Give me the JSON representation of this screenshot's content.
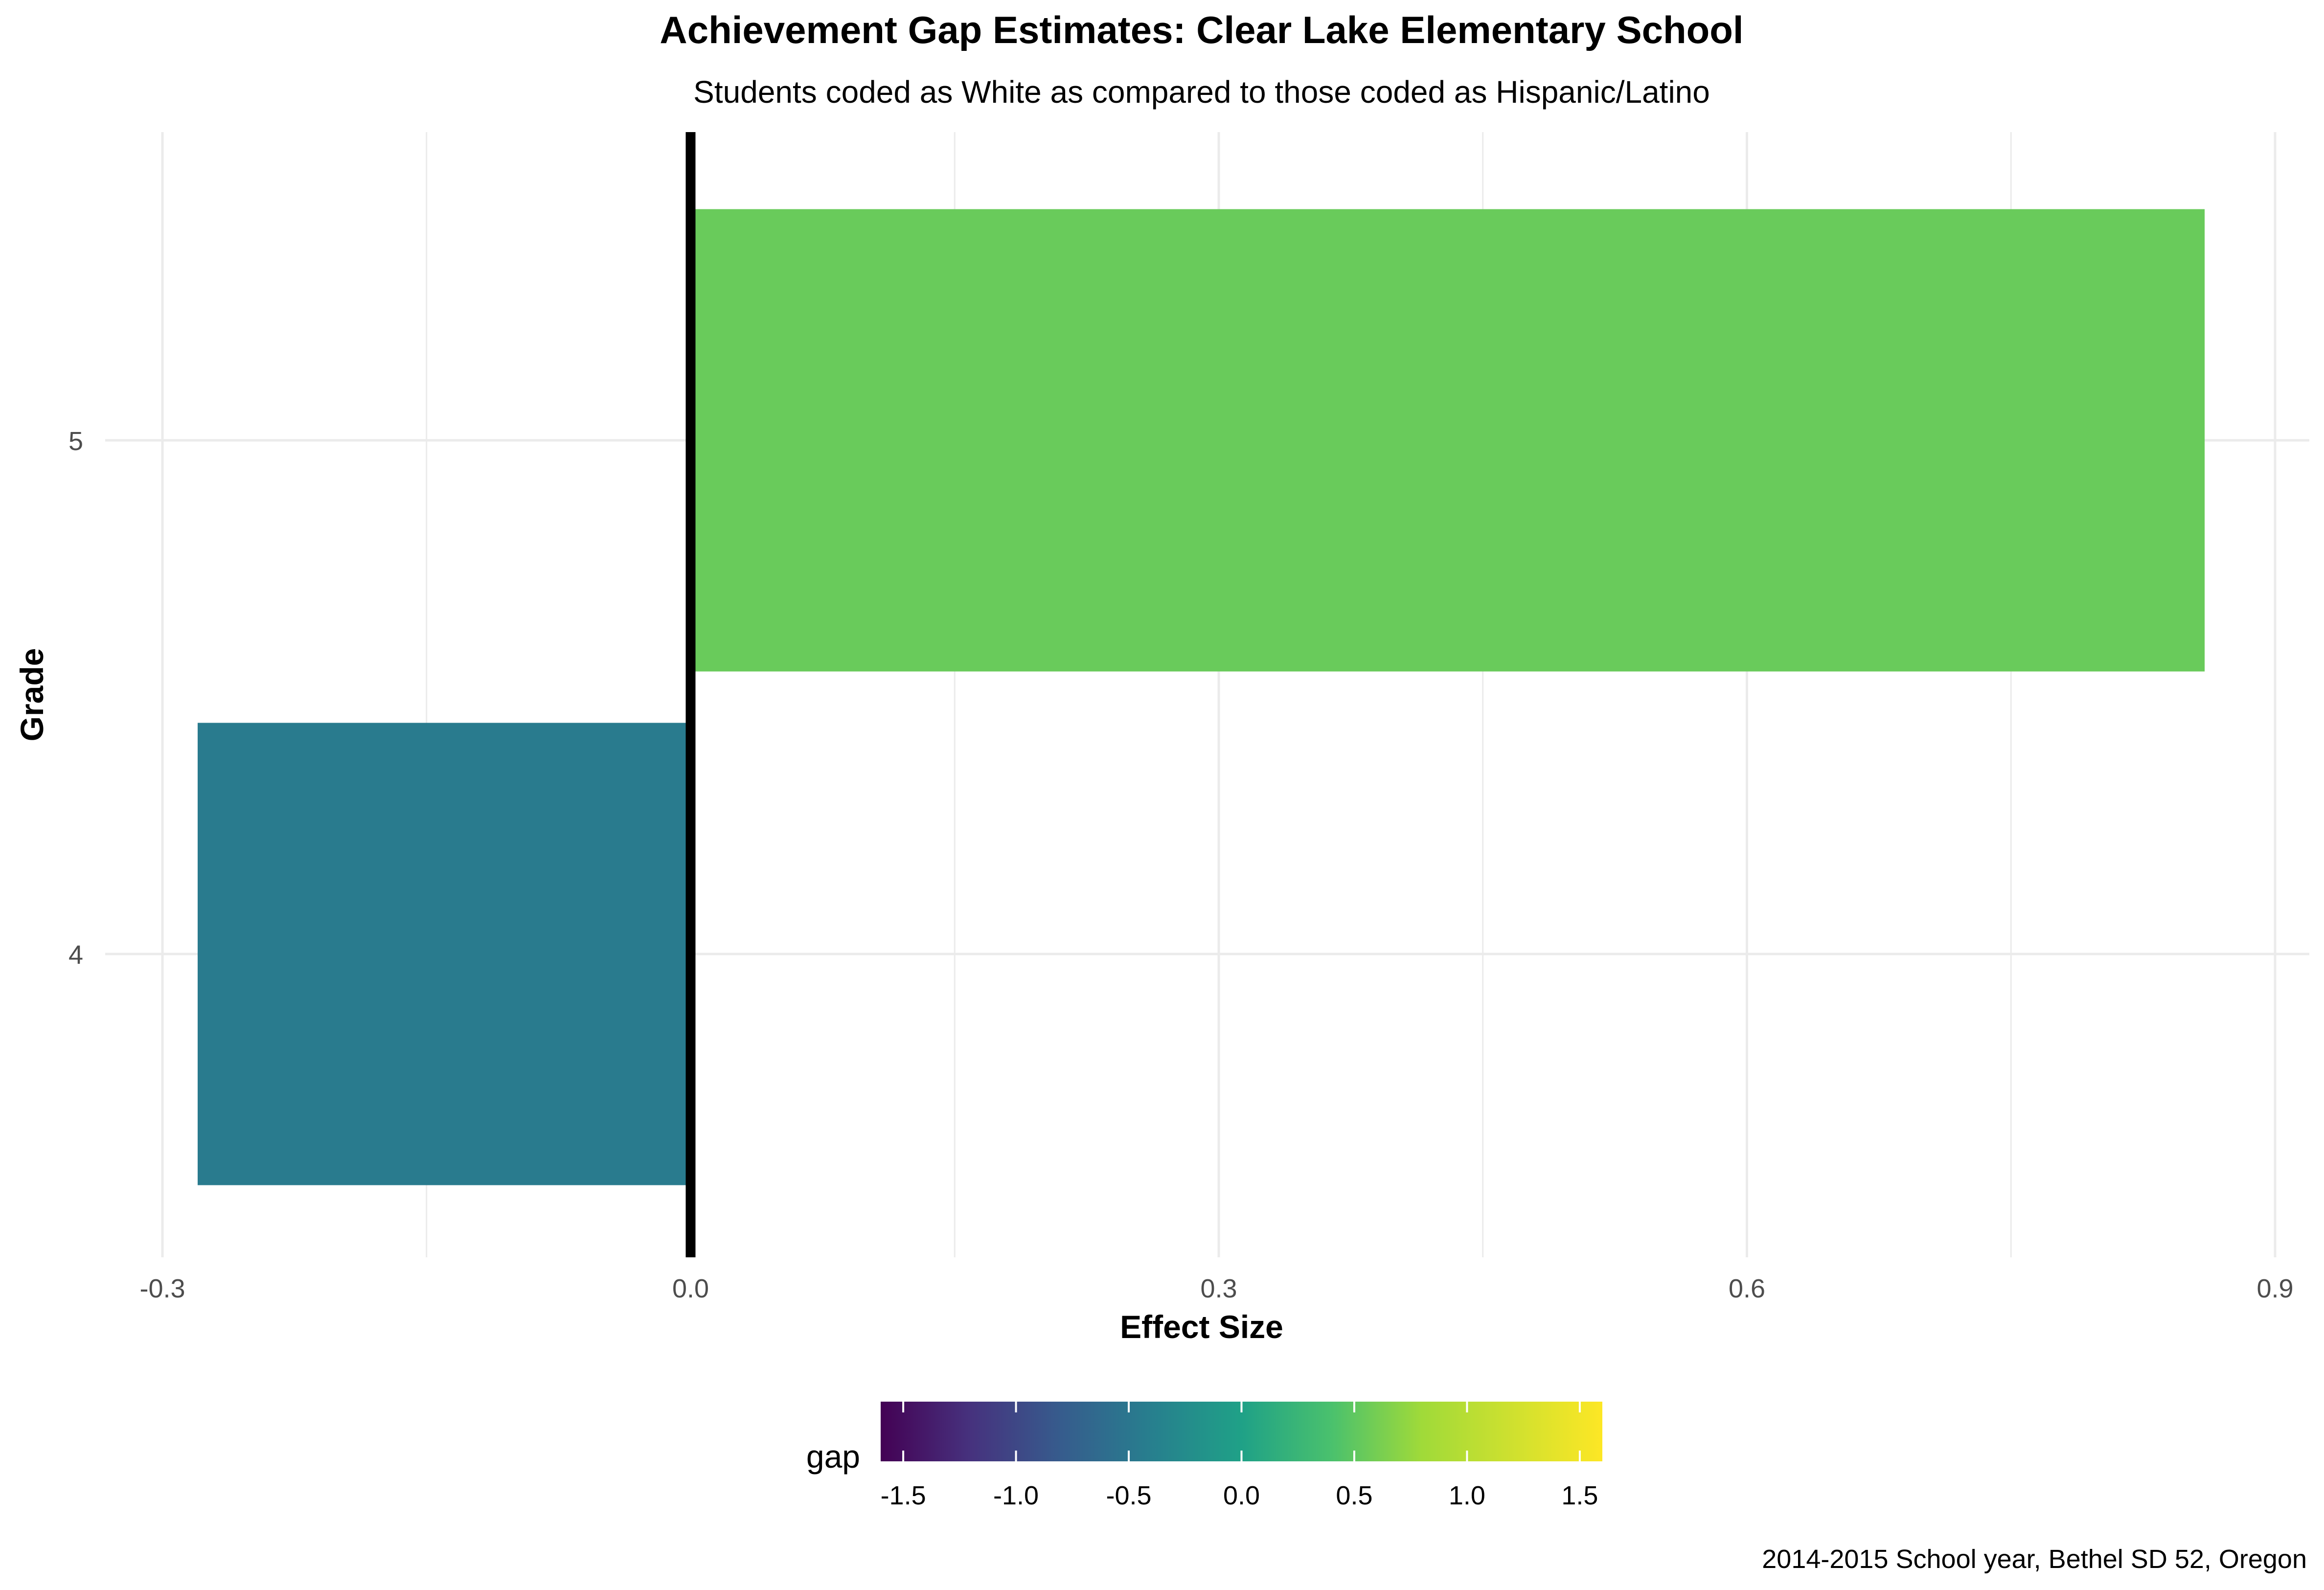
{
  "chart_data": {
    "type": "bar",
    "orientation": "horizontal",
    "title": "Achievement Gap Estimates: Clear Lake Elementary School",
    "subtitle": "Students coded as White as compared to those coded as Hispanic/Latino",
    "xlabel": "Effect Size",
    "ylabel": "Grade",
    "caption": "2014-2015 School year, Bethel SD 52, Oregon",
    "categories": [
      "4",
      "5"
    ],
    "values": [
      -0.28,
      0.86
    ],
    "xlim": [
      -0.3,
      0.9
    ],
    "xticks": [
      -0.3,
      0.0,
      0.3,
      0.6,
      0.9
    ],
    "xtick_labels": [
      "-0.3",
      "0.0",
      "0.3",
      "0.6",
      "0.9"
    ],
    "reference_line": 0,
    "grid": true,
    "legend": {
      "title": "gap",
      "position": "bottom",
      "type": "colorbar",
      "palette": "viridis",
      "limits": [
        -1.6,
        1.6
      ],
      "ticks": [
        -1.5,
        -1.0,
        -0.5,
        0.0,
        0.5,
        1.0,
        1.5
      ],
      "tick_labels": [
        "-1.5",
        "-1.0",
        "-0.5",
        "0.0",
        "0.5",
        "1.0",
        "1.5"
      ]
    },
    "colors": {
      "grid": "#ebebeb",
      "zero_line": "#000000",
      "text": "#000000",
      "tick_text": "#4d4d4d"
    }
  }
}
